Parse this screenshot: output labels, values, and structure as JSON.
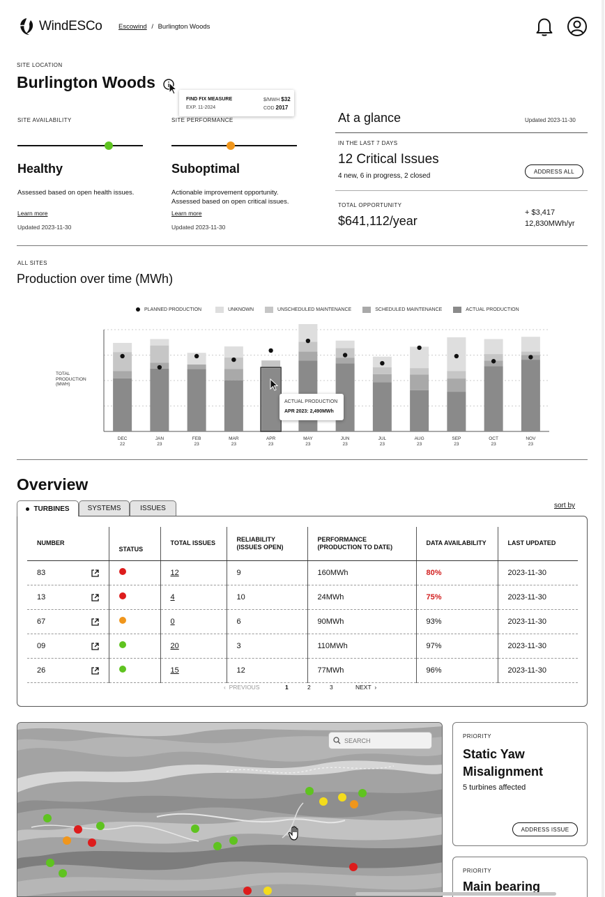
{
  "header": {
    "brand": "WindESCo",
    "breadcrumb_root": "Escowind",
    "breadcrumb_sep": "/",
    "breadcrumb_current": "Burlington Woods"
  },
  "site": {
    "location_label": "SITE LOCATION",
    "title": "Burlington Woods",
    "tooltip": {
      "left_title": "FIND FIX MEASURE",
      "left_sub": "EXP. 11-2024",
      "right_label1": "$/MWH",
      "right_value1": "$32",
      "right_label2": "COD",
      "right_value2": "2017"
    }
  },
  "availability": {
    "label": "SITE AVAILABILITY",
    "status": "Healthy",
    "description": "Assessed based on open health issues.",
    "link": "Learn more",
    "updated": "Updated 2023-11-30",
    "color": "#5fc320",
    "level": 0.73
  },
  "performance": {
    "label": "SITE PERFORMANCE",
    "status": "Suboptimal",
    "description_line1": "Actionable improvement opportunity.",
    "description_line2": "Assessed based on open critical issues.",
    "link": "Learn more",
    "updated": "Updated 2023-11-30",
    "color": "#f0961c",
    "level": 0.47
  },
  "glance": {
    "title": "At a glance",
    "updated": "Updated 2023-11-30",
    "period_label": "IN THE LAST 7 DAYS",
    "issues_title": "12 Critical Issues",
    "issues_sub": "4 new, 6 in progress, 2 closed",
    "address_all": "ADDRESS ALL",
    "opportunity_label": "TOTAL OPPORTUNITY",
    "opportunity_value": "$641,112/year",
    "delta_money": "+ $3,417",
    "delta_energy": "12,830MWh/yr"
  },
  "production": {
    "scope_label": "ALL SITES",
    "title": "Production over time (MWh)"
  },
  "chart_data": {
    "type": "bar",
    "title": "Production over time (MWh)",
    "ylabel_lines": [
      "TOTAL",
      "PRODUCTION",
      "(MWH)"
    ],
    "categories": [
      "DEC 22",
      "JAN 23",
      "FEB 23",
      "MAR 23",
      "APR 23",
      "MAY 23",
      "JUN 23",
      "JUL 23",
      "AUG 23",
      "SEP 23",
      "OCT 23",
      "NOV 23"
    ],
    "tick_month": [
      "DEC",
      "JAN",
      "FEB",
      "MAR",
      "APR",
      "MAY",
      "JUN",
      "JUL",
      "AUG",
      "SEP",
      "OCT",
      "NOV"
    ],
    "tick_year": [
      "22",
      "23",
      "23",
      "23",
      "23",
      "23",
      "23",
      "23",
      "23",
      "23",
      "23",
      "23"
    ],
    "ylim": [
      0,
      4000
    ],
    "stack_order": [
      "actual",
      "scheduled",
      "unscheduled",
      "unknown"
    ],
    "series": [
      {
        "key": "actual",
        "name": "ACTUAL PRODUCTION",
        "color": "#8a8a8a",
        "values": [
          2090,
          2470,
          2450,
          2010,
          2490,
          2780,
          2670,
          1930,
          1620,
          1560,
          2570,
          2820
        ]
      },
      {
        "key": "scheduled",
        "name": "SCHEDULED MAINTENANCE",
        "color": "#a9a9a9",
        "values": [
          280,
          230,
          180,
          450,
          0,
          360,
          230,
          320,
          620,
          520,
          210,
          180
        ]
      },
      {
        "key": "unscheduled",
        "name": "UNSCHEDULED MAINTENANCE",
        "color": "#c6c6c6",
        "values": [
          750,
          680,
          0,
          450,
          300,
          380,
          380,
          270,
          250,
          290,
          260,
          140
        ]
      },
      {
        "key": "unknown",
        "name": "UNKNOWN",
        "color": "#dedede",
        "values": [
          360,
          250,
          460,
          430,
          0,
          700,
          290,
          420,
          840,
          1330,
          590,
          580
        ]
      }
    ],
    "planned": {
      "name": "PLANNED PRODUCTION",
      "color": "#111111",
      "values": [
        2960,
        2520,
        2960,
        2820,
        3180,
        3560,
        3000,
        2680,
        3290,
        2960,
        2760,
        2920
      ]
    },
    "highlight_index": 4,
    "tooltip": {
      "title": "ACTUAL PRODUCTION",
      "value": "APR 2023: 2,490MWh"
    }
  },
  "overview": {
    "title": "Overview",
    "tabs": [
      "TURBINES",
      "SYSTEMS",
      "ISSUES"
    ],
    "sort_by": "sort by",
    "columns": [
      "NUMBER",
      "STATUS",
      "TOTAL ISSUES",
      "RELIABILITY (ISSUES OPEN)",
      "PERFORMANCE (PRODUCTION TO DATE)",
      "DATA AVAILABILITY",
      "LAST UPDATED"
    ],
    "rows": [
      {
        "number": "83",
        "status": "#dd1c1c",
        "issues": "12",
        "reliability": "9",
        "performance": "160MWh",
        "availability": "80%",
        "avail_low": true,
        "updated": "2023-11-30"
      },
      {
        "number": "13",
        "status": "#dd1c1c",
        "issues": "4",
        "reliability": "10",
        "performance": "24MWh",
        "availability": "75%",
        "avail_low": true,
        "updated": "2023-11-30"
      },
      {
        "number": "67",
        "status": "#f0961c",
        "issues": "0",
        "reliability": "6",
        "performance": "90MWh",
        "availability": "93%",
        "avail_low": false,
        "updated": "2023-11-30"
      },
      {
        "number": "09",
        "status": "#5fc320",
        "issues": "20",
        "reliability": "3",
        "performance": "110MWh",
        "availability": "97%",
        "avail_low": false,
        "updated": "2023-11-30"
      },
      {
        "number": "26",
        "status": "#5fc320",
        "issues": "15",
        "reliability": "12",
        "performance": "77MWh",
        "availability": "96%",
        "avail_low": false,
        "updated": "2023-11-30"
      }
    ],
    "pagination": {
      "previous": "PREVIOUS",
      "pages": [
        "1",
        "2",
        "3"
      ],
      "current": "1",
      "next": "NEXT"
    }
  },
  "map": {
    "search_placeholder": "SEARCH"
  },
  "priority_cards": [
    {
      "label": "PRIORITY",
      "title": "Static Yaw Misalignment",
      "sub": "5 turbines affected",
      "action": "ADDRESS ISSUE"
    },
    {
      "label": "PRIORITY",
      "title": "Main bearing"
    }
  ]
}
